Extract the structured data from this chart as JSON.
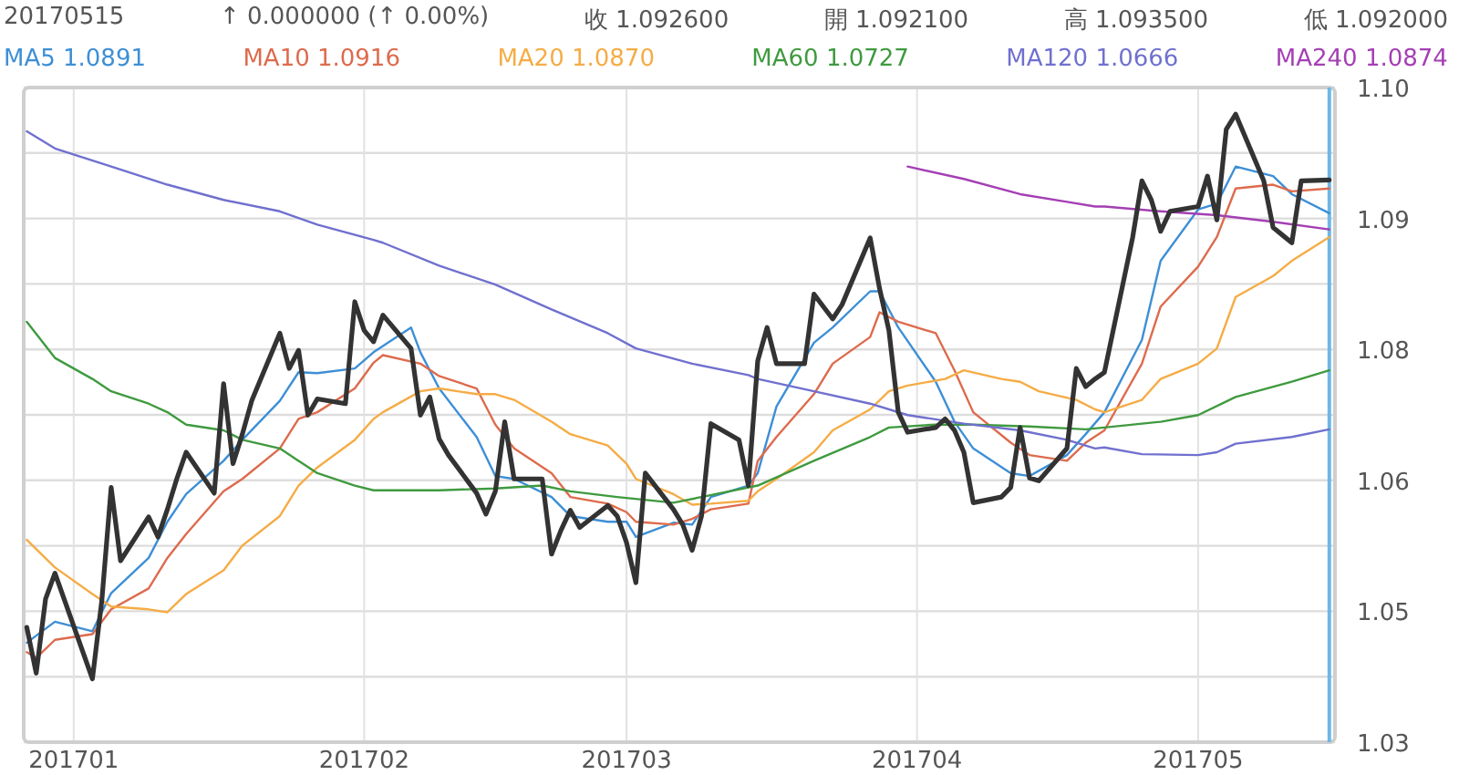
{
  "chart_data": {
    "type": "line",
    "annotations": [
      "20170515",
      "↑ 0.000000 (↑ 0.00%)",
      "收 1.092600",
      "開 1.092100",
      "高 1.093500",
      "低 1.092000"
    ],
    "xlim": [
      "2016-12-26T16:00",
      "2017-05-15T14:30"
    ],
    "xticks": [
      {
        "value": "2017-01",
        "label": "201701"
      },
      {
        "value": "2017-02",
        "label": "201702"
      },
      {
        "value": "2017-03",
        "label": "201703"
      },
      {
        "value": "2017-04",
        "label": "201704"
      },
      {
        "value": "2017-05",
        "label": "201705"
      }
    ],
    "ylim": [
      1.03375,
      1.1025
    ],
    "yticks": [
      {
        "value": 1.03375,
        "label": "1.03"
      },
      {
        "value": 1.040625,
        "label": null
      },
      {
        "value": 1.0475,
        "label": "1.05"
      },
      {
        "value": 1.054375,
        "label": null
      },
      {
        "value": 1.06125,
        "label": "1.06"
      },
      {
        "value": 1.068125,
        "label": null
      },
      {
        "value": 1.075,
        "label": "1.08"
      },
      {
        "value": 1.081875,
        "label": null
      },
      {
        "value": 1.08875,
        "label": "1.09"
      },
      {
        "value": 1.095625,
        "label": null
      },
      {
        "value": 1.1025,
        "label": "1.10"
      }
    ],
    "grid": true,
    "legend": "top",
    "ref_lines": [
      {
        "axis": "x",
        "value": "2017-05-15",
        "color": "#6cb8e6"
      }
    ],
    "series": [
      {
        "color": "#333333",
        "x": [
          "2016-12-27",
          "2016-12-28",
          "2016-12-29",
          "2016-12-30",
          "2017-01-03",
          "2017-01-04",
          "2017-01-05",
          "2017-01-06",
          "2017-01-09",
          "2017-01-10",
          "2017-01-11",
          "2017-01-12",
          "2017-01-13",
          "2017-01-16",
          "2017-01-17",
          "2017-01-18",
          "2017-01-19",
          "2017-01-20",
          "2017-01-23",
          "2017-01-24",
          "2017-01-25",
          "2017-01-26",
          "2017-01-27",
          "2017-01-30",
          "2017-01-31",
          "2017-02-01",
          "2017-02-02",
          "2017-02-03",
          "2017-02-06",
          "2017-02-07",
          "2017-02-08",
          "2017-02-09",
          "2017-02-10",
          "2017-02-13",
          "2017-02-14",
          "2017-02-15",
          "2017-02-16",
          "2017-02-17",
          "2017-02-20",
          "2017-02-21",
          "2017-02-22",
          "2017-02-23",
          "2017-02-24",
          "2017-02-27",
          "2017-02-28",
          "2017-03-01",
          "2017-03-02",
          "2017-03-03",
          "2017-03-06",
          "2017-03-07",
          "2017-03-08",
          "2017-03-09",
          "2017-03-10",
          "2017-03-13",
          "2017-03-14",
          "2017-03-15",
          "2017-03-16",
          "2017-03-17",
          "2017-03-20",
          "2017-03-21",
          "2017-03-22",
          "2017-03-23",
          "2017-03-24",
          "2017-03-27",
          "2017-03-28",
          "2017-03-29",
          "2017-03-30",
          "2017-03-31",
          "2017-04-03",
          "2017-04-04",
          "2017-04-05",
          "2017-04-06",
          "2017-04-07",
          "2017-04-10",
          "2017-04-11",
          "2017-04-12",
          "2017-04-13",
          "2017-04-14",
          "2017-04-17",
          "2017-04-18",
          "2017-04-19",
          "2017-04-20",
          "2017-04-21",
          "2017-04-24",
          "2017-04-25",
          "2017-04-26",
          "2017-04-27",
          "2017-04-28",
          "2017-05-01",
          "2017-05-02",
          "2017-05-03",
          "2017-05-04",
          "2017-05-05",
          "2017-05-08",
          "2017-05-09",
          "2017-05-10",
          "2017-05-11",
          "2017-05-12",
          "2017-05-15"
        ],
        "values": [
          1.0458,
          1.041,
          1.0488,
          1.0515,
          1.0404,
          1.0486,
          1.0605,
          1.0528,
          1.0574,
          1.0553,
          1.0582,
          1.0614,
          1.0642,
          1.0599,
          1.0714,
          1.063,
          1.0661,
          1.0696,
          1.0767,
          1.073,
          1.0749,
          1.0681,
          1.0698,
          1.0693,
          1.08,
          1.077,
          1.0758,
          1.0786,
          1.0751,
          1.0681,
          1.07,
          1.0656,
          1.0639,
          1.0599,
          1.0577,
          1.0601,
          1.0674,
          1.0614,
          1.0614,
          1.0535,
          1.056,
          1.0581,
          1.0563,
          1.0586,
          1.0575,
          1.0547,
          1.0505,
          1.062,
          1.0582,
          1.0566,
          1.0539,
          1.0575,
          1.0672,
          1.0655,
          1.0607,
          1.0738,
          1.0773,
          1.0735,
          1.0735,
          1.0808,
          1.0795,
          1.0782,
          1.0797,
          1.0867,
          1.0814,
          1.077,
          1.0684,
          1.0663,
          1.0668,
          1.0677,
          1.0665,
          1.0642,
          1.0589,
          1.0595,
          1.0605,
          1.0668,
          1.0615,
          1.0612,
          1.0646,
          1.073,
          1.0711,
          1.0719,
          1.0726,
          1.0867,
          1.0927,
          1.0907,
          1.0874,
          1.0895,
          1.09,
          1.0932,
          1.0886,
          1.0981,
          1.0997,
          1.0927,
          1.0878,
          1.087,
          1.0862,
          1.0927,
          1.0928
        ]
      },
      {
        "name": "MA5 1.0891",
        "color": "#3d8fd6",
        "x": [
          "2016-12-27",
          "2016-12-30",
          "2017-01-03",
          "2017-01-05",
          "2017-01-09",
          "2017-01-11",
          "2017-01-13",
          "2017-01-17",
          "2017-01-19",
          "2017-01-23",
          "2017-01-25",
          "2017-01-27",
          "2017-01-31",
          "2017-02-02",
          "2017-02-06",
          "2017-02-07",
          "2017-02-09",
          "2017-02-13",
          "2017-02-15",
          "2017-02-17",
          "2017-02-21",
          "2017-02-23",
          "2017-02-27",
          "2017-03-01",
          "2017-03-02",
          "2017-03-06",
          "2017-03-08",
          "2017-03-10",
          "2017-03-14",
          "2017-03-15",
          "2017-03-17",
          "2017-03-21",
          "2017-03-23",
          "2017-03-27",
          "2017-03-28",
          "2017-03-30",
          "2017-04-03",
          "2017-04-05",
          "2017-04-07",
          "2017-04-11",
          "2017-04-13",
          "2017-04-17",
          "2017-04-19",
          "2017-04-21",
          "2017-04-25",
          "2017-04-27",
          "2017-05-01",
          "2017-05-03",
          "2017-05-05",
          "2017-05-09",
          "2017-05-11",
          "2017-05-15"
        ],
        "values": [
          1.0442,
          1.0464,
          1.0454,
          1.0494,
          1.0531,
          1.0569,
          1.0598,
          1.0633,
          1.0655,
          1.0696,
          1.0726,
          1.0725,
          1.073,
          1.0747,
          1.0773,
          1.0747,
          1.0709,
          1.0658,
          1.0617,
          1.0614,
          1.0595,
          1.0575,
          1.0569,
          1.0569,
          1.0553,
          1.0568,
          1.0566,
          1.0595,
          1.0607,
          1.062,
          1.069,
          1.0757,
          1.0773,
          1.0811,
          1.0811,
          1.0773,
          1.0716,
          1.0674,
          1.0646,
          1.062,
          1.0617,
          1.0639,
          1.0661,
          1.0684,
          1.076,
          1.0843,
          1.0897,
          1.0903,
          1.0942,
          1.0932,
          1.0913,
          1.0893
        ]
      },
      {
        "name": "MA10 1.0916",
        "color": "#dd6b4d",
        "x": [
          "2016-12-27",
          "2016-12-28",
          "2016-12-30",
          "2017-01-03",
          "2017-01-05",
          "2017-01-09",
          "2017-01-11",
          "2017-01-13",
          "2017-01-17",
          "2017-01-19",
          "2017-01-23",
          "2017-01-25",
          "2017-01-27",
          "2017-01-31",
          "2017-02-02",
          "2017-02-03",
          "2017-02-07",
          "2017-02-09",
          "2017-02-13",
          "2017-02-15",
          "2017-02-17",
          "2017-02-21",
          "2017-02-23",
          "2017-02-27",
          "2017-03-01",
          "2017-03-02",
          "2017-03-06",
          "2017-03-08",
          "2017-03-10",
          "2017-03-14",
          "2017-03-15",
          "2017-03-17",
          "2017-03-21",
          "2017-03-23",
          "2017-03-27",
          "2017-03-28",
          "2017-03-30",
          "2017-04-03",
          "2017-04-05",
          "2017-04-07",
          "2017-04-11",
          "2017-04-13",
          "2017-04-17",
          "2017-04-19",
          "2017-04-21",
          "2017-04-25",
          "2017-04-27",
          "2017-05-01",
          "2017-05-03",
          "2017-05-05",
          "2017-05-09",
          "2017-05-11",
          "2017-05-15"
        ],
        "values": [
          1.0432,
          1.0426,
          1.0445,
          1.0451,
          1.0477,
          1.0499,
          1.0531,
          1.0556,
          1.0601,
          1.0614,
          1.0646,
          1.0677,
          1.0684,
          1.0709,
          1.0736,
          1.0744,
          1.0735,
          1.0722,
          1.0709,
          1.0671,
          1.0646,
          1.062,
          1.0595,
          1.0588,
          1.0579,
          1.0569,
          1.0566,
          1.0572,
          1.0582,
          1.0588,
          1.0633,
          1.0658,
          1.0703,
          1.0735,
          1.0763,
          1.0789,
          1.0779,
          1.0767,
          1.0728,
          1.0684,
          1.0652,
          1.0639,
          1.0633,
          1.0652,
          1.0665,
          1.0735,
          1.0795,
          1.0837,
          1.0868,
          1.0919,
          1.0923,
          1.0916,
          1.0919
        ]
      },
      {
        "name": "MA20 1.0870",
        "color": "#f5ac45",
        "x": [
          "2016-12-27",
          "2016-12-30",
          "2017-01-03",
          "2017-01-05",
          "2017-01-09",
          "2017-01-11",
          "2017-01-13",
          "2017-01-17",
          "2017-01-19",
          "2017-01-23",
          "2017-01-25",
          "2017-01-27",
          "2017-01-31",
          "2017-02-02",
          "2017-02-03",
          "2017-02-07",
          "2017-02-09",
          "2017-02-13",
          "2017-02-15",
          "2017-02-17",
          "2017-02-21",
          "2017-02-23",
          "2017-02-27",
          "2017-03-01",
          "2017-03-02",
          "2017-03-06",
          "2017-03-08",
          "2017-03-10",
          "2017-03-14",
          "2017-03-15",
          "2017-03-17",
          "2017-03-21",
          "2017-03-23",
          "2017-03-27",
          "2017-03-29",
          "2017-03-31",
          "2017-04-04",
          "2017-04-06",
          "2017-04-10",
          "2017-04-12",
          "2017-04-14",
          "2017-04-18",
          "2017-04-20",
          "2017-04-21",
          "2017-04-25",
          "2017-04-27",
          "2017-05-01",
          "2017-05-03",
          "2017-05-05",
          "2017-05-09",
          "2017-05-11",
          "2017-05-15"
        ],
        "values": [
          1.055,
          1.0521,
          1.0493,
          1.048,
          1.0477,
          1.0474,
          1.0493,
          1.0518,
          1.0544,
          1.0575,
          1.0607,
          1.0626,
          1.0655,
          1.0677,
          1.0684,
          1.0706,
          1.0709,
          1.0703,
          1.0703,
          1.0697,
          1.0674,
          1.0661,
          1.0649,
          1.063,
          1.0614,
          1.0598,
          1.0587,
          1.0588,
          1.0591,
          1.0601,
          1.0614,
          1.0642,
          1.0665,
          1.0687,
          1.0706,
          1.0712,
          1.0719,
          1.0728,
          1.0719,
          1.0716,
          1.0706,
          1.0697,
          1.0687,
          1.0684,
          1.0697,
          1.0719,
          1.0735,
          1.0751,
          1.0805,
          1.0827,
          1.0843,
          1.0868
        ]
      },
      {
        "name": "MA60 1.0727",
        "color": "#3f9a3f",
        "x": [
          "2016-12-27",
          "2016-12-30",
          "2017-01-03",
          "2017-01-05",
          "2017-01-09",
          "2017-01-11",
          "2017-01-13",
          "2017-01-17",
          "2017-01-19",
          "2017-01-23",
          "2017-01-25",
          "2017-01-27",
          "2017-01-31",
          "2017-02-02",
          "2017-02-03",
          "2017-02-09",
          "2017-02-15",
          "2017-02-20",
          "2017-02-23",
          "2017-02-28",
          "2017-03-06",
          "2017-03-09",
          "2017-03-15",
          "2017-03-21",
          "2017-03-27",
          "2017-03-29",
          "2017-04-03",
          "2017-04-07",
          "2017-04-13",
          "2017-04-19",
          "2017-04-21",
          "2017-04-27",
          "2017-05-01",
          "2017-05-05",
          "2017-05-11",
          "2017-05-15"
        ],
        "values": [
          1.0779,
          1.0741,
          1.0719,
          1.0706,
          1.0693,
          1.0684,
          1.0671,
          1.0665,
          1.0655,
          1.0646,
          1.0633,
          1.062,
          1.0607,
          1.0602,
          1.0602,
          1.0602,
          1.0604,
          1.0607,
          1.0601,
          1.0595,
          1.0589,
          1.0595,
          1.0607,
          1.0633,
          1.0658,
          1.0668,
          1.0671,
          1.0671,
          1.0669,
          1.0666,
          1.0668,
          1.0674,
          1.0681,
          1.07,
          1.0716,
          1.0728
        ]
      },
      {
        "name": "MA120 1.0666",
        "color": "#7070cf",
        "x": [
          "2016-12-27",
          "2016-12-30",
          "2017-01-05",
          "2017-01-11",
          "2017-01-17",
          "2017-01-23",
          "2017-01-27",
          "2017-02-02",
          "2017-02-03",
          "2017-02-09",
          "2017-02-15",
          "2017-02-21",
          "2017-02-27",
          "2017-03-02",
          "2017-03-08",
          "2017-03-14",
          "2017-03-15",
          "2017-03-21",
          "2017-03-27",
          "2017-03-31",
          "2017-04-06",
          "2017-04-12",
          "2017-04-17",
          "2017-04-20",
          "2017-04-21",
          "2017-04-25",
          "2017-05-01",
          "2017-05-03",
          "2017-05-05",
          "2017-05-11",
          "2017-05-15"
        ],
        "values": [
          1.0979,
          1.0961,
          1.0942,
          1.0923,
          1.0907,
          1.0895,
          1.0881,
          1.0865,
          1.0862,
          1.0838,
          1.0818,
          1.0792,
          1.0767,
          1.0751,
          1.0735,
          1.0723,
          1.0719,
          1.0706,
          1.0693,
          1.0681,
          1.0672,
          1.0665,
          1.0655,
          1.0646,
          1.0647,
          1.064,
          1.0639,
          1.0642,
          1.0651,
          1.0658,
          1.0666
        ]
      },
      {
        "name": "MA240 1.0874",
        "color": "#a43fb4",
        "x": [
          "2017-03-31",
          "2017-04-06",
          "2017-04-12",
          "2017-04-17",
          "2017-04-20",
          "2017-04-21",
          "2017-04-27",
          "2017-05-03",
          "2017-05-09",
          "2017-05-15"
        ],
        "values": [
          1.0942,
          1.0929,
          1.0913,
          1.0905,
          1.09,
          1.09,
          1.0895,
          1.0891,
          1.0884,
          1.0876
        ]
      }
    ]
  }
}
